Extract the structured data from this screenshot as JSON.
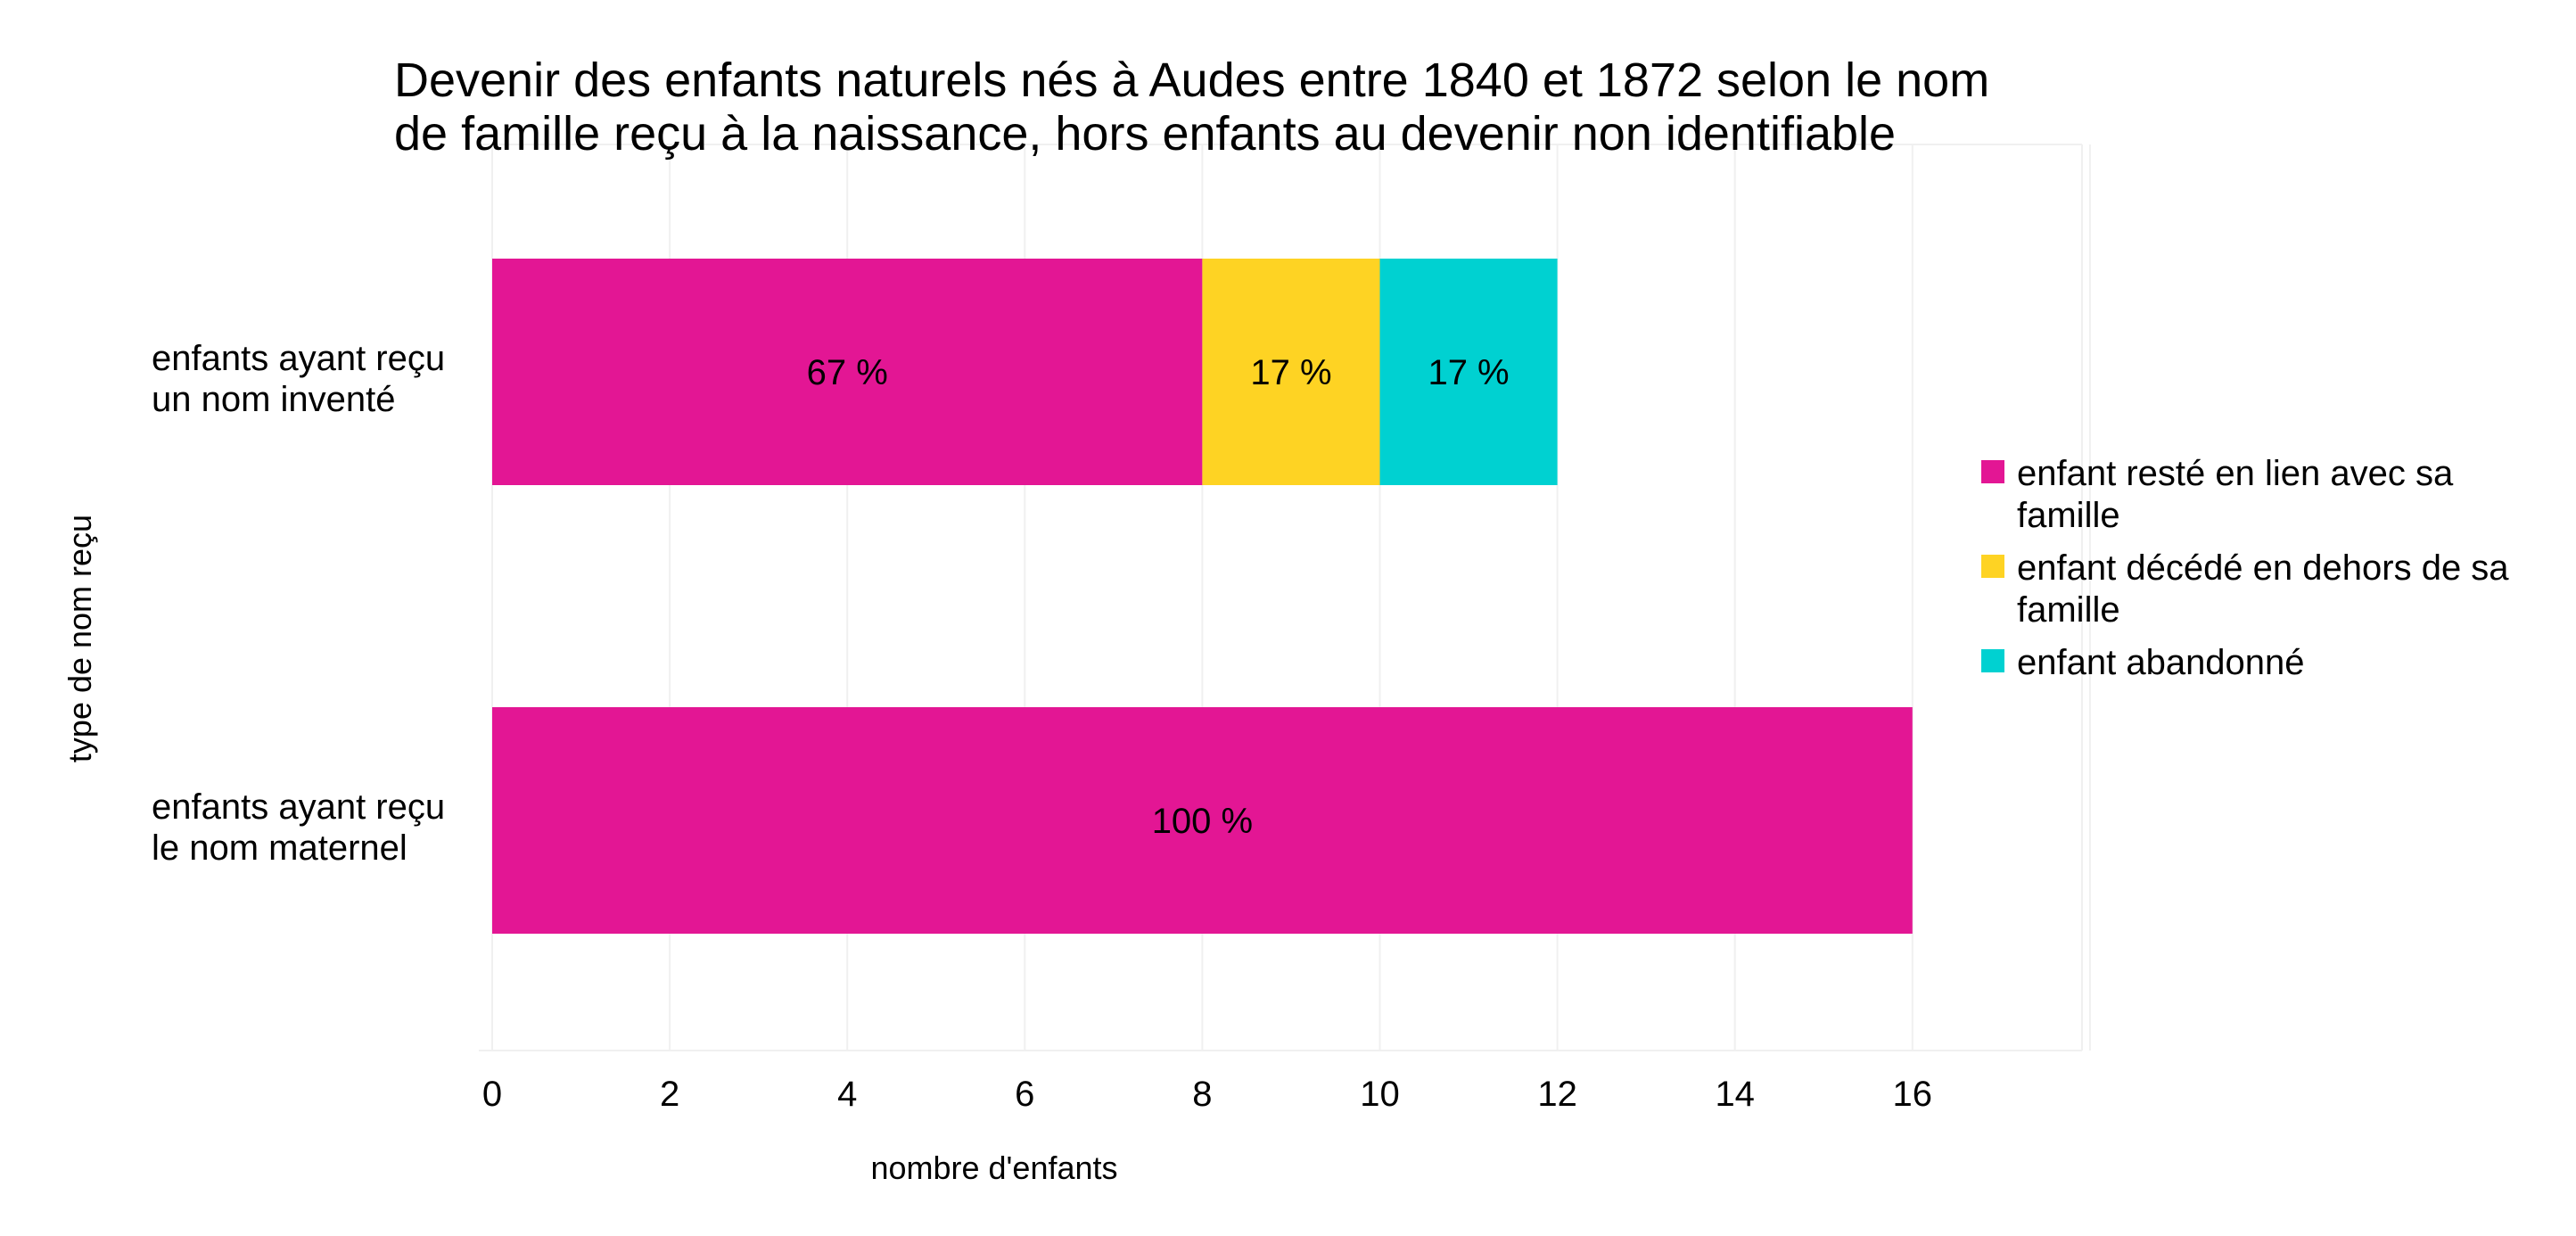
{
  "chart_data": {
    "type": "bar",
    "orientation": "horizontal",
    "stacked": true,
    "title": [
      "Devenir des enfants naturels nés à Audes entre 1840 et 1872 selon le nom",
      "de famille reçu à la naissance, hors enfants au devenir non identifiable"
    ],
    "xlabel": "nombre d'enfants",
    "ylabel": "type de nom reçu",
    "xlim": [
      0,
      18
    ],
    "x_ticks": [
      0,
      2,
      4,
      6,
      8,
      10,
      12,
      14,
      16
    ],
    "grid": true,
    "legend_position": "right",
    "categories": [
      {
        "label": [
          "enfants ayant reçu",
          "un nom inventé"
        ]
      },
      {
        "label": [
          "enfants ayant reçu",
          "le nom maternel"
        ]
      }
    ],
    "series": [
      {
        "name": [
          "enfant resté en lien avec sa",
          "famille"
        ],
        "color": "#e31694",
        "values": [
          8,
          16
        ],
        "labels": [
          "67 %",
          "100 %"
        ]
      },
      {
        "name": [
          "enfant décédé en dehors de sa",
          "famille"
        ],
        "color": "#fed323",
        "values": [
          2,
          0
        ],
        "labels": [
          "17 %",
          ""
        ]
      },
      {
        "name": [
          "enfant abandonné"
        ],
        "color": "#00d1d1",
        "values": [
          2,
          0
        ],
        "labels": [
          "17 %",
          ""
        ]
      }
    ]
  }
}
